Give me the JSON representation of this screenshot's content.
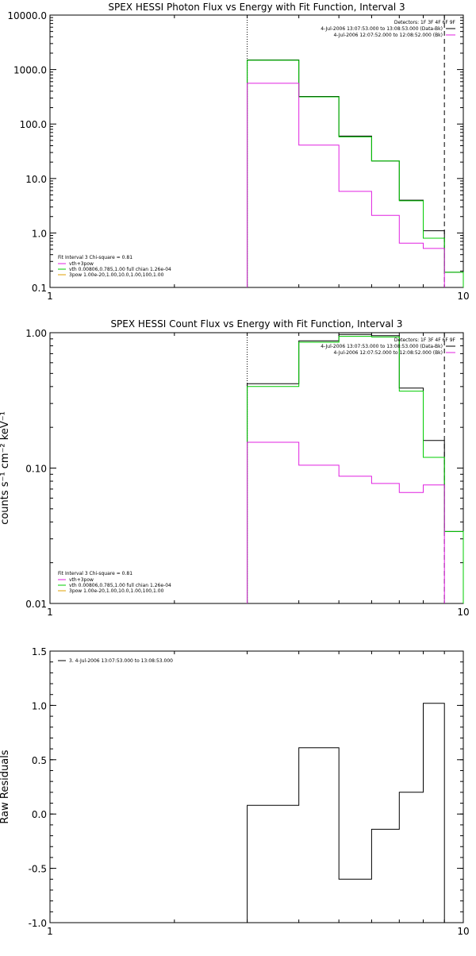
{
  "colors": {
    "black": "#000000",
    "green": "#00cc00",
    "magenta": "#e020e0",
    "orange": "#e0a000"
  },
  "chart_data": [
    {
      "type": "line",
      "title": "SPEX HESSI Photon Flux vs Energy with Fit Function, Interval 3",
      "xscale": "log",
      "yscale": "log",
      "xlim": [
        1,
        10
      ],
      "ylim": [
        0.1,
        10000
      ],
      "xticks": [
        1,
        10
      ],
      "xtick_labels": [
        "1",
        "10"
      ],
      "yticks": [
        0.1,
        1,
        10,
        100,
        1000,
        10000
      ],
      "ytick_labels": [
        "0.1",
        "1.0",
        "10.0",
        "100.0",
        "1000.0",
        "10000.0"
      ],
      "ylabel": "",
      "vlines": [
        {
          "x": 3,
          "style": "dotted"
        },
        {
          "x": 9,
          "style": "dashed"
        }
      ],
      "edges": [
        3,
        4,
        5,
        6,
        7,
        8,
        9,
        10
      ],
      "series": [
        {
          "color": "black",
          "values": [
            1500,
            320,
            60,
            21,
            4,
            1.1,
            0.19
          ]
        },
        {
          "color": "green",
          "values": [
            1480,
            315,
            58,
            21,
            3.9,
            0.8,
            0.19
          ]
        },
        {
          "color": "magenta",
          "values": [
            560,
            41,
            5.8,
            2.1,
            0.65,
            0.52,
            null
          ]
        }
      ],
      "legend_right": {
        "title": "Detectors: 1F 3F 4F 6F 9F",
        "items": [
          {
            "text": "4-Jul-2006 13:07:53.000 to 13:08:53.000 (Data-Bk)",
            "color": "black"
          },
          {
            "text": "4-Jul-2006 12:07:52.000 to 12:08:52.000 (Bk)",
            "color": "magenta"
          }
        ]
      },
      "legend_left": {
        "title": "Fit Interval 3   Chi-square = 0.81",
        "items": [
          {
            "text": "vth+3pow",
            "color": "magenta"
          },
          {
            "text": "vth 0.00806,0.785,1.00   full chian 1.26e-04",
            "color": "green"
          },
          {
            "text": "3pow 1.00e-20,1.00,10.0,1.00,100,1.00",
            "color": "orange"
          }
        ]
      }
    },
    {
      "type": "line",
      "title": "SPEX HESSI Count Flux vs Energy with Fit Function, Interval 3",
      "xscale": "log",
      "yscale": "log",
      "xlim": [
        1,
        10
      ],
      "ylim": [
        0.01,
        1
      ],
      "xticks": [
        1,
        10
      ],
      "xtick_labels": [
        "1",
        "10"
      ],
      "yticks": [
        0.01,
        0.1,
        1
      ],
      "ytick_labels": [
        "0.01",
        "0.10",
        "1.00"
      ],
      "ylabel": "counts s⁻¹ cm⁻² keV⁻¹",
      "vlines": [
        {
          "x": 3,
          "style": "dotted"
        },
        {
          "x": 9,
          "style": "dashed"
        }
      ],
      "edges": [
        3,
        4,
        5,
        6,
        7,
        8,
        9,
        10
      ],
      "series": [
        {
          "color": "black",
          "values": [
            0.42,
            0.87,
            0.97,
            0.95,
            0.39,
            0.16,
            0.034
          ]
        },
        {
          "color": "green",
          "values": [
            0.4,
            0.85,
            0.94,
            0.93,
            0.37,
            0.12,
            0.034
          ]
        },
        {
          "color": "magenta",
          "values": [
            0.155,
            0.105,
            0.087,
            0.077,
            0.066,
            0.075,
            null
          ]
        }
      ],
      "legend_right": {
        "title": "Detectors: 1F 3F 4F 6F 9F",
        "items": [
          {
            "text": "4-Jul-2006 13:07:53.000 to 13:08:53.000 (Data-Bk)",
            "color": "black"
          },
          {
            "text": "4-Jul-2006 12:07:52.000 to 12:08:52.000 (Bk)",
            "color": "magenta"
          }
        ]
      },
      "legend_left": {
        "title": "Fit Interval 3   Chi-square = 0.81",
        "items": [
          {
            "text": "vth+3pow",
            "color": "magenta"
          },
          {
            "text": "vth 0.00806,0.785,1.00   full chian 1.26e-04",
            "color": "green"
          },
          {
            "text": "3pow 1.00e-20,1.00,10.0,1.00,100,1.00",
            "color": "orange"
          }
        ]
      }
    },
    {
      "type": "line",
      "title": "",
      "xscale": "log",
      "yscale": "linear",
      "xlim": [
        1,
        10
      ],
      "ylim": [
        -1.0,
        1.5
      ],
      "xticks": [
        1,
        10
      ],
      "xtick_labels": [
        "1",
        "10"
      ],
      "yticks": [
        -1.0,
        -0.5,
        0.0,
        0.5,
        1.0,
        1.5
      ],
      "ytick_labels": [
        "-1.0",
        "-0.5",
        "0.0",
        "0.5",
        "1.0",
        "1.5"
      ],
      "ylabel": "Raw Residuals",
      "vlines": [],
      "edges": [
        3,
        4,
        5,
        6,
        7,
        8,
        9
      ],
      "residual": true,
      "series": [
        {
          "color": "black",
          "values": [
            0.08,
            0.61,
            -0.6,
            -0.14,
            0.2,
            1.02
          ]
        }
      ],
      "legend_right": null,
      "legend_left": null,
      "legend_top": {
        "items": [
          {
            "text": "3.  4-Jul-2006 13:07:53.000 to 13:08:53.000",
            "color": "black"
          }
        ]
      }
    }
  ]
}
